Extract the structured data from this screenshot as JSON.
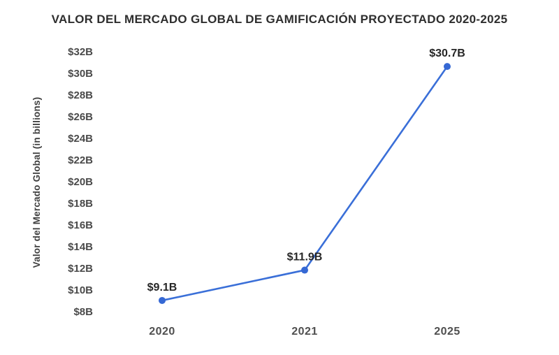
{
  "title": "VALOR DEL MERCADO GLOBAL DE GAMIFICACIÓN PROYECTADO 2020-2025",
  "chart_data": {
    "type": "line",
    "title": "VALOR DEL MERCADO GLOBAL DE GAMIFICACIÓN PROYECTADO 2020-2025",
    "categories": [
      "2020",
      "2021",
      "2025"
    ],
    "values": [
      9.1,
      11.9,
      30.7
    ],
    "point_labels": [
      "$9.1B",
      "$11.9B",
      "$30.7B"
    ],
    "series_name": "Valor del Mercado Global",
    "xlabel": "",
    "ylabel": "Valor del Mercado Global (in billions)",
    "ylim": [
      8,
      32
    ],
    "ytick_step": 2,
    "ytick_prefix": "$",
    "ytick_suffix": "B",
    "ytick_labels": [
      "$32B",
      "$30B",
      "$28B",
      "$26B",
      "$24B",
      "$22B",
      "$20B",
      "$18B",
      "$16B",
      "$14B",
      "$12B",
      "$10B",
      "$8B"
    ],
    "grid": false,
    "legend_position": "none",
    "line_color": "#3a6fd8",
    "marker_color": "#3568d4",
    "label_color": "#262626",
    "tick_color": "#4a4a4a",
    "background_color": "#ffffff"
  }
}
